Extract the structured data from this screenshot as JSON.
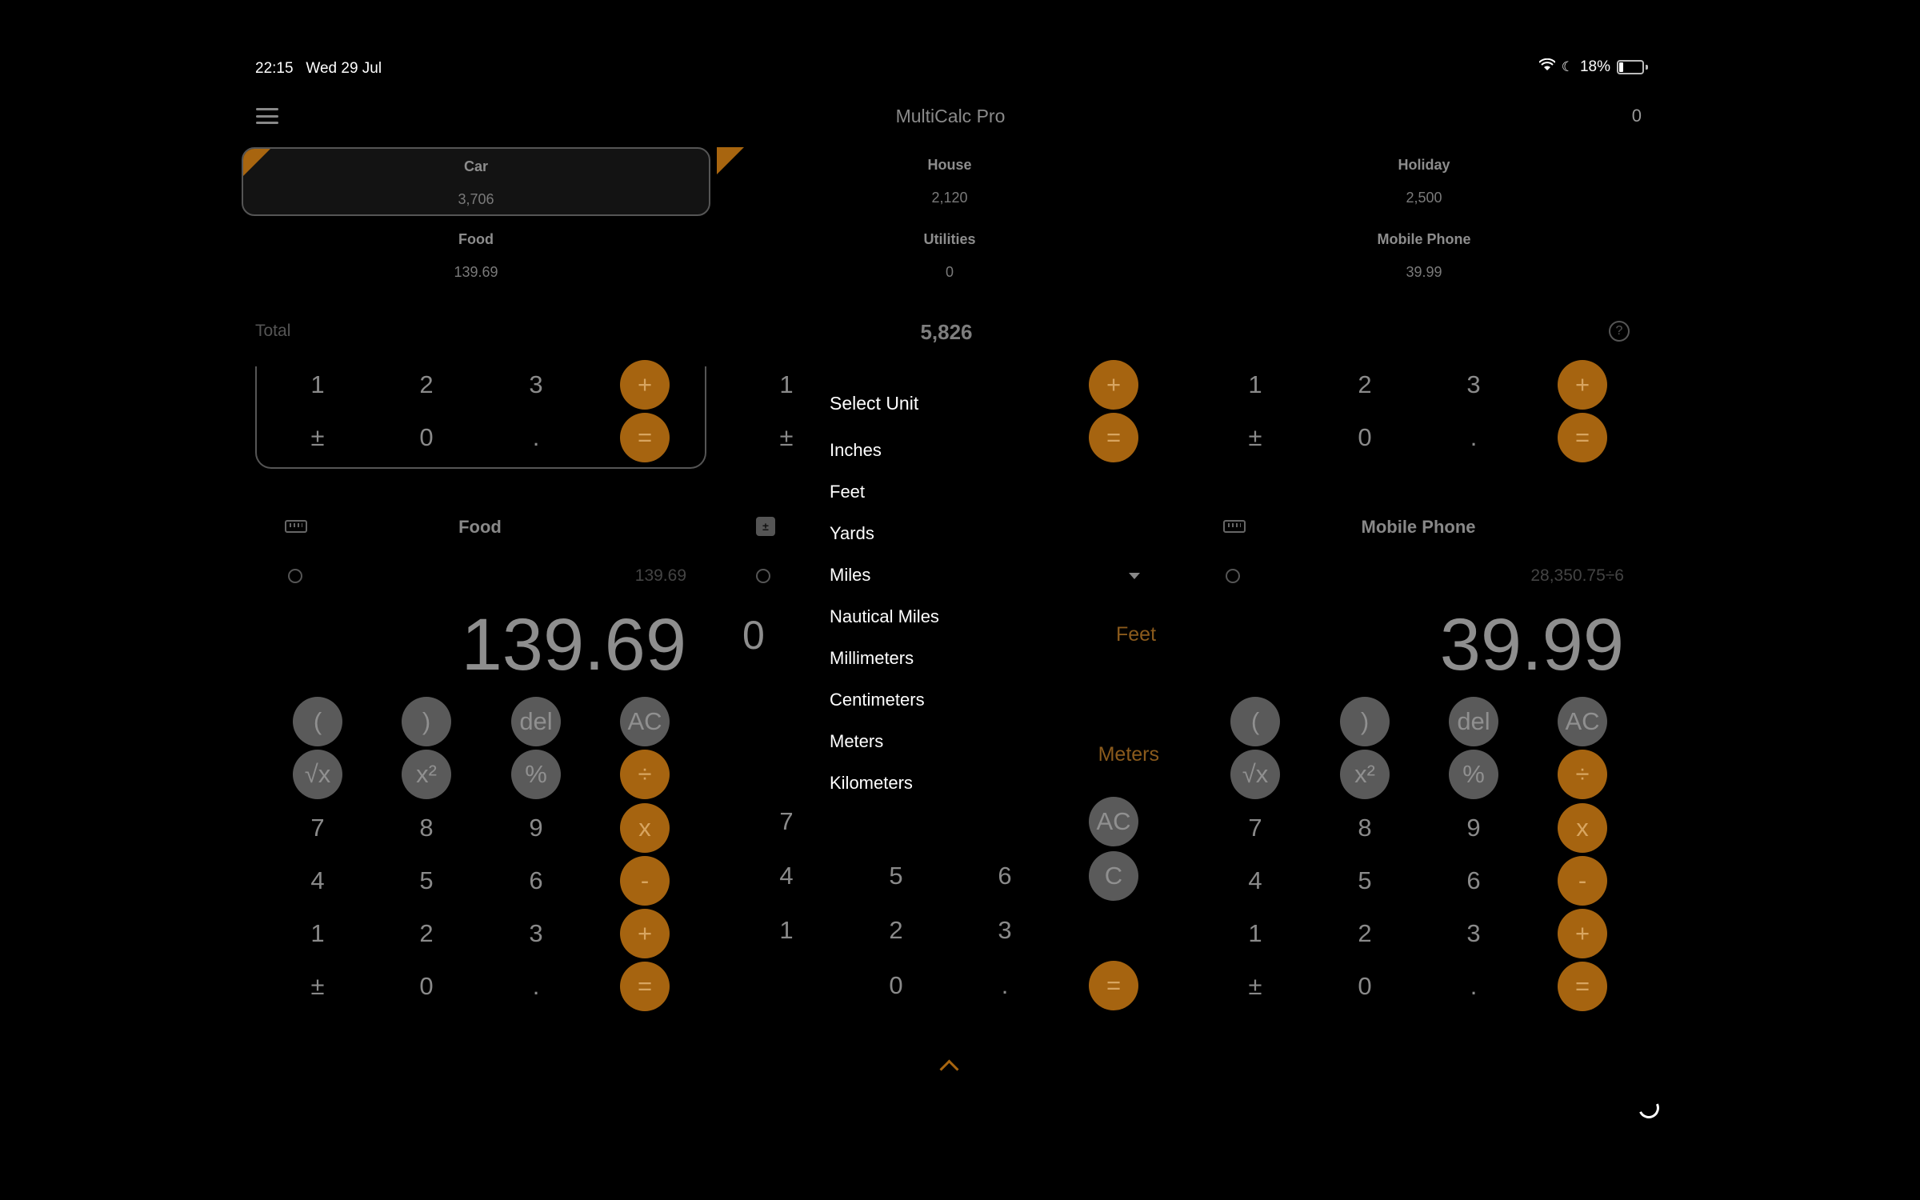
{
  "status_bar": {
    "time": "22:15",
    "date": "Wed 29 Jul",
    "battery": "18%"
  },
  "header": {
    "title": "MultiCalc Pro",
    "count": "0"
  },
  "tiles": [
    {
      "label": "Car",
      "value": "3,706"
    },
    {
      "label": "House",
      "value": "2,120"
    },
    {
      "label": "Holiday",
      "value": "2,500"
    },
    {
      "label": "Food",
      "value": "139.69"
    },
    {
      "label": "Utilities",
      "value": "0"
    },
    {
      "label": "Mobile Phone",
      "value": "39.99"
    }
  ],
  "total": {
    "label": "Total",
    "value": "5,826"
  },
  "keys": {
    "open_paren": "(",
    "close_paren": ")",
    "del": "del",
    "ac": "AC",
    "sqrt": "√x",
    "square": "x²",
    "percent": "%",
    "divide": "÷",
    "multiply": "x",
    "minus": "-",
    "plus": "+",
    "equals": "=",
    "plus_minus": "±",
    "dot": ".",
    "clear": "C",
    "d0": "0",
    "d1": "1",
    "d2": "2",
    "d3": "3",
    "d4": "4",
    "d5": "5",
    "d6": "6",
    "d7": "7",
    "d8": "8",
    "d9": "9"
  },
  "calc_left": {
    "title": "Food",
    "expression": "139.69",
    "display": "139.69"
  },
  "calc_middle": {
    "display": "0",
    "unit_from": "Feet",
    "unit_to": "Meters"
  },
  "calc_right": {
    "title": "Mobile Phone",
    "expression": "28,350.75÷6",
    "display": "39.99"
  },
  "unit_dropdown": {
    "title": "Select Unit",
    "options": [
      "Inches",
      "Feet",
      "Yards",
      "Miles",
      "Nautical Miles",
      "Millimeters",
      "Centimeters",
      "Meters",
      "Kilometers"
    ]
  },
  "colors": {
    "accent": "#a66410",
    "background": "#000000"
  }
}
